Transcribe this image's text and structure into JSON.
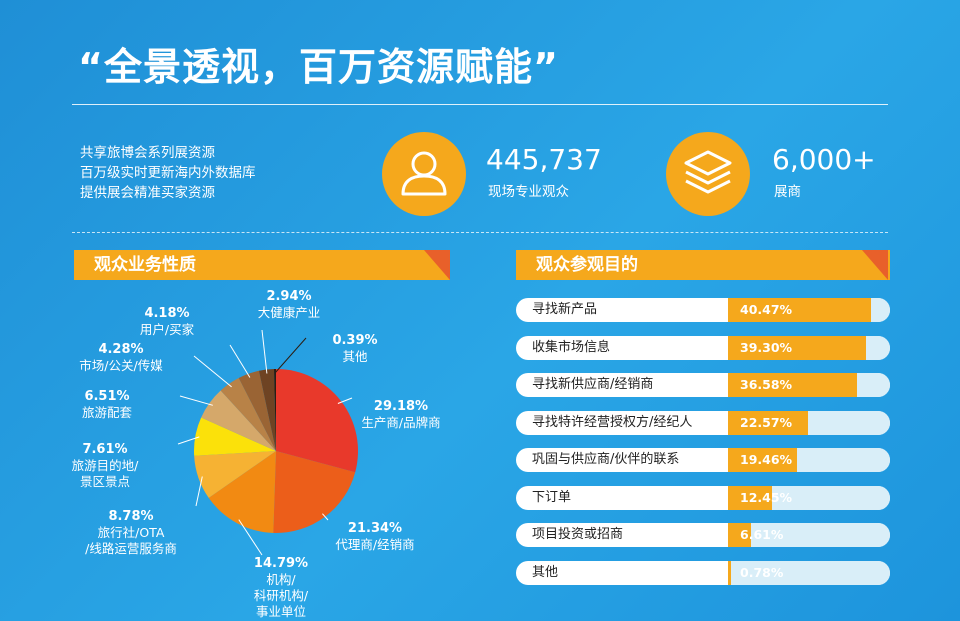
{
  "header": {
    "title": "“全景透视，百万资源赋能”"
  },
  "intro": {
    "lines": [
      "共享旅博会系列展资源",
      "百万级实时更新海内外数据库",
      "提供展会精准买家资源"
    ]
  },
  "stats": [
    {
      "value": "445,737",
      "label": "现场专业观众",
      "icon": "person-icon"
    },
    {
      "value": "6,000+",
      "label": "展商",
      "icon": "layers-icon"
    }
  ],
  "colors": {
    "accent": "#f5a81c",
    "background": "#2aa6e6",
    "track": "#d9eef8"
  },
  "chart_data": [
    {
      "type": "pie",
      "title": "观众业务性质",
      "slices": [
        {
          "label": "生产商/品牌商",
          "pct_label": "29.18%",
          "value": 29.18,
          "color": "#e8392b"
        },
        {
          "label": "代理商/经销商",
          "pct_label": "21.34%",
          "value": 21.34,
          "color": "#ec5e1a"
        },
        {
          "label": "机构/科研机构/事业单位",
          "pct_label": "14.79%",
          "value": 14.79,
          "color": "#f28a12"
        },
        {
          "label": "旅行社/OTA/线路运营服务商",
          "pct_label": "8.78%",
          "value": 8.78,
          "color": "#f6b233"
        },
        {
          "label": "旅游目的地/景区景点",
          "pct_label": "7.61%",
          "value": 7.61,
          "color": "#fbe10a"
        },
        {
          "label": "旅游配套",
          "pct_label": "6.51%",
          "value": 6.51,
          "color": "#d5a86a"
        },
        {
          "label": "市场/公关/传媒",
          "pct_label": "4.28%",
          "value": 4.28,
          "color": "#b88247"
        },
        {
          "label": "用户/买家",
          "pct_label": "4.18%",
          "value": 4.18,
          "color": "#9a6434"
        },
        {
          "label": "大健康产业",
          "pct_label": "2.94%",
          "value": 2.94,
          "color": "#6e4323"
        },
        {
          "label": "其他",
          "pct_label": "0.39%",
          "value": 0.39,
          "color": "#2b1d12"
        }
      ]
    },
    {
      "type": "bar",
      "title": "观众参观目的",
      "categories": [
        "寻找新产品",
        "收集市场信息",
        "寻找新供应商/经销商",
        "寻找特许经营授权方/经纪人",
        "巩固与供应商/伙伴的联系",
        "下订单",
        "项目投资或招商",
        "其他"
      ],
      "value_labels": [
        "40.47%",
        "39.30%",
        "36.58%",
        "22.57%",
        "19.46%",
        "12.45%",
        "6.61%",
        "0.78%"
      ],
      "values": [
        40.47,
        39.3,
        36.58,
        22.57,
        19.46,
        12.45,
        6.61,
        0.78
      ],
      "xlim": [
        0,
        46
      ]
    }
  ]
}
